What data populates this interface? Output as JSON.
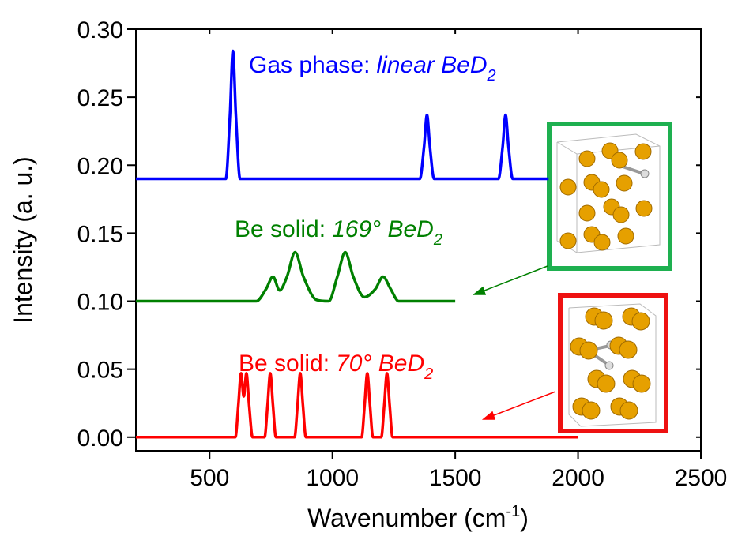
{
  "chart_data": {
    "type": "line",
    "xlabel": {
      "text": "Wavenumber (cm",
      "sup": "-1",
      "end": ")"
    },
    "ylabel": "Intensity (a. u.)",
    "xlim": [
      200,
      2500
    ],
    "ylim": [
      -0.01,
      0.3
    ],
    "xticks": [
      500,
      1000,
      1500,
      2000,
      2500
    ],
    "yticks": [
      {
        "value": 0,
        "label": "0.00"
      },
      {
        "value": 0.05,
        "label": "0.05"
      },
      {
        "value": 0.1,
        "label": "0.10"
      },
      {
        "value": 0.15,
        "label": "0.15"
      },
      {
        "value": 0.2,
        "label": "0.20"
      },
      {
        "value": 0.25,
        "label": "0.25"
      },
      {
        "value": 0.3,
        "label": "0.30"
      }
    ],
    "series": [
      {
        "color": "#0000ff",
        "x": [
          200,
          566,
          583,
          595,
          607,
          624,
          1356,
          1373,
          1385,
          1397,
          1414,
          1676,
          1693,
          1705,
          1717,
          1734,
          1880
        ],
        "values": [
          0.19,
          0.19,
          0.237,
          0.284,
          0.237,
          0.19,
          0.19,
          0.2135,
          0.237,
          0.2135,
          0.19,
          0.19,
          0.2135,
          0.237,
          0.2135,
          0.19,
          0.19
        ]
      },
      {
        "color": "#008000",
        "x": [
          200,
          690,
          730,
          758,
          785,
          815,
          848,
          882,
          935,
          985,
          1020,
          1052,
          1085,
          1130,
          1175,
          1206,
          1237,
          1270,
          1500
        ],
        "values": [
          0.1,
          0.1,
          0.109,
          0.118,
          0.108,
          0.118,
          0.136,
          0.118,
          0.101,
          0.1,
          0.118,
          0.136,
          0.118,
          0.103,
          0.109,
          0.118,
          0.109,
          0.1,
          0.1
        ]
      },
      {
        "color": "#ff0000",
        "x": [
          200,
          605,
          617,
          628,
          639,
          650,
          661,
          675,
          724,
          736,
          747,
          758,
          770,
          846,
          858,
          869,
          880,
          892,
          1119,
          1131,
          1142,
          1153,
          1165,
          1199,
          1211,
          1222,
          1233,
          1245,
          2000
        ],
        "values": [
          0,
          0,
          0.0235,
          0.047,
          0.03,
          0.047,
          0.0235,
          0,
          0,
          0.0235,
          0.047,
          0.0235,
          0,
          0,
          0.0235,
          0.047,
          0.0235,
          0,
          0,
          0.0235,
          0.047,
          0.0235,
          0,
          0,
          0.0235,
          0.047,
          0.0235,
          0,
          0
        ]
      }
    ],
    "annotations": [
      {
        "text": "Gas phase:",
        "italic": "linear BeD",
        "sub": "2",
        "color": "#0000ff"
      },
      {
        "text": "Be solid:",
        "italic": "169° BeD",
        "sub": "2",
        "color": "#008000"
      },
      {
        "text": "Be solid:",
        "italic": "70° BeD",
        "sub": "2",
        "color": "#ff0000"
      }
    ]
  }
}
